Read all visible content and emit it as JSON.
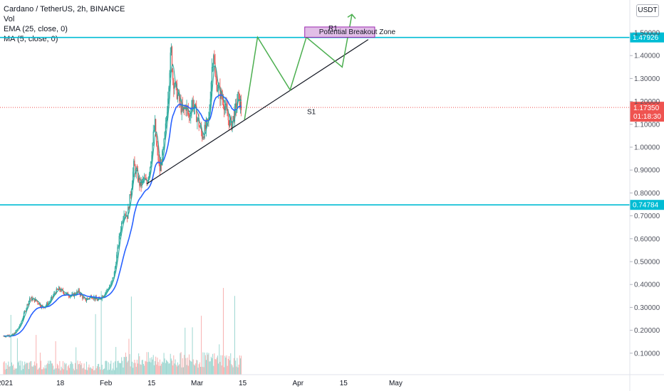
{
  "legend": {
    "symbol": "Cardano / TetherUS, 2h, BINANCE",
    "vol": "Vol",
    "ema": "EMA (25, close, 0)",
    "ma": "MA (5, close, 0)"
  },
  "currency": "USDT",
  "chart_data": {
    "type": "candlestick",
    "x_ticks": [
      "2021",
      "18",
      "Feb",
      "15",
      "Mar",
      "15",
      "Apr",
      "15",
      "May"
    ],
    "y_ticks": [
      "0.10000",
      "0.20000",
      "0.30000",
      "0.40000",
      "0.50000",
      "0.60000",
      "0.70000",
      "0.80000",
      "0.90000",
      "1.00000",
      "1.10000",
      "1.20000",
      "1.30000",
      "1.40000",
      "1.50000"
    ],
    "ylim": [
      0.0,
      1.62
    ],
    "price_path": [
      {
        "day": 0,
        "price": 0.175
      },
      {
        "day": 3,
        "price": 0.18
      },
      {
        "day": 5,
        "price": 0.22
      },
      {
        "day": 7,
        "price": 0.3
      },
      {
        "day": 8,
        "price": 0.34
      },
      {
        "day": 10,
        "price": 0.33
      },
      {
        "day": 12,
        "price": 0.3
      },
      {
        "day": 14,
        "price": 0.32
      },
      {
        "day": 16,
        "price": 0.37
      },
      {
        "day": 17,
        "price": 0.38
      },
      {
        "day": 19,
        "price": 0.36
      },
      {
        "day": 21,
        "price": 0.35
      },
      {
        "day": 23,
        "price": 0.37
      },
      {
        "day": 25,
        "price": 0.33
      },
      {
        "day": 27,
        "price": 0.35
      },
      {
        "day": 29,
        "price": 0.33
      },
      {
        "day": 31,
        "price": 0.36
      },
      {
        "day": 33,
        "price": 0.4
      },
      {
        "day": 34,
        "price": 0.45
      },
      {
        "day": 35,
        "price": 0.55
      },
      {
        "day": 36,
        "price": 0.65
      },
      {
        "day": 37,
        "price": 0.72
      },
      {
        "day": 38,
        "price": 0.7
      },
      {
        "day": 39,
        "price": 0.8
      },
      {
        "day": 40,
        "price": 0.92
      },
      {
        "day": 41,
        "price": 0.88
      },
      {
        "day": 42,
        "price": 0.83
      },
      {
        "day": 43,
        "price": 0.86
      },
      {
        "day": 44,
        "price": 0.84
      },
      {
        "day": 45,
        "price": 0.92
      },
      {
        "day": 46,
        "price": 1.05
      },
      {
        "day": 46.5,
        "price": 1.1
      },
      {
        "day": 47,
        "price": 1.0
      },
      {
        "day": 48,
        "price": 0.9
      },
      {
        "day": 49,
        "price": 0.98
      },
      {
        "day": 50,
        "price": 1.12
      },
      {
        "day": 51,
        "price": 1.35
      },
      {
        "day": 51.5,
        "price": 1.42
      },
      {
        "day": 52,
        "price": 1.3
      },
      {
        "day": 53,
        "price": 1.25
      },
      {
        "day": 54,
        "price": 1.2
      },
      {
        "day": 55,
        "price": 1.15
      },
      {
        "day": 56,
        "price": 1.18
      },
      {
        "day": 57,
        "price": 1.13
      },
      {
        "day": 58,
        "price": 1.2
      },
      {
        "day": 59,
        "price": 1.15
      },
      {
        "day": 60,
        "price": 1.1
      },
      {
        "day": 61,
        "price": 1.05
      },
      {
        "day": 62,
        "price": 1.08
      },
      {
        "day": 63,
        "price": 1.12
      },
      {
        "day": 64,
        "price": 1.35
      },
      {
        "day": 64.5,
        "price": 1.42
      },
      {
        "day": 65,
        "price": 1.3
      },
      {
        "day": 66,
        "price": 1.25
      },
      {
        "day": 67,
        "price": 1.22
      },
      {
        "day": 68,
        "price": 1.18
      },
      {
        "day": 69,
        "price": 1.12
      },
      {
        "day": 70,
        "price": 1.1
      },
      {
        "day": 71,
        "price": 1.15
      },
      {
        "day": 72,
        "price": 1.22
      },
      {
        "day": 73,
        "price": 1.17
      }
    ],
    "ema_color": "#2962ff",
    "ma_color": "#26a69a",
    "up_color": "#26a69a",
    "down_color": "#ef5350",
    "horizontal_levels": [
      {
        "value": 1.47926,
        "label": "1.47926",
        "color": "#00bcd4"
      },
      {
        "value": 0.74784,
        "label": "0.74784",
        "color": "#00bcd4"
      }
    ],
    "last_price": {
      "value": 1.1735,
      "label": "1.17350",
      "countdown": "01:18:30",
      "color": "#ef5350"
    },
    "annotations": {
      "r1": "R1",
      "s1": "S1",
      "zone": "Potential Breakout Zone"
    },
    "trendline": {
      "start": {
        "day": 44,
        "price": 0.84
      },
      "end": {
        "day": 112,
        "price": 1.47
      }
    },
    "projection": [
      {
        "day": 74,
        "price": 1.12
      },
      {
        "day": 78,
        "price": 1.48
      },
      {
        "day": 88,
        "price": 1.25
      },
      {
        "day": 93,
        "price": 1.48
      },
      {
        "day": 104,
        "price": 1.35
      },
      {
        "day": 107,
        "price": 1.58
      }
    ],
    "breakout_zone": {
      "from_day": 92.5,
      "to_day": 114,
      "low": 1.48,
      "high": 1.525
    },
    "volume_max": 1.0
  }
}
